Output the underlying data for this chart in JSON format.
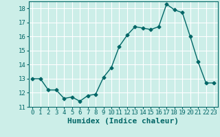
{
  "x": [
    0,
    1,
    2,
    3,
    4,
    5,
    6,
    7,
    8,
    9,
    10,
    11,
    12,
    13,
    14,
    15,
    16,
    17,
    18,
    19,
    20,
    21,
    22,
    23
  ],
  "y": [
    13.0,
    13.0,
    12.2,
    12.2,
    11.6,
    11.7,
    11.4,
    11.8,
    11.9,
    13.1,
    13.8,
    15.3,
    16.1,
    16.7,
    16.6,
    16.5,
    16.7,
    18.3,
    17.9,
    17.7,
    16.0,
    14.2,
    12.7,
    12.7
  ],
  "line_color": "#006666",
  "marker": "D",
  "marker_size": 2.5,
  "bg_color": "#cceee8",
  "grid_color": "#ffffff",
  "xlabel": "Humidex (Indice chaleur)",
  "xlabel_fontsize": 8,
  "ylim": [
    11,
    18.5
  ],
  "yticks": [
    11,
    12,
    13,
    14,
    15,
    16,
    17,
    18
  ],
  "xticks": [
    0,
    1,
    2,
    3,
    4,
    5,
    6,
    7,
    8,
    9,
    10,
    11,
    12,
    13,
    14,
    15,
    16,
    17,
    18,
    19,
    20,
    21,
    22,
    23
  ],
  "tick_fontsize": 6.5,
  "line_width": 1.0
}
